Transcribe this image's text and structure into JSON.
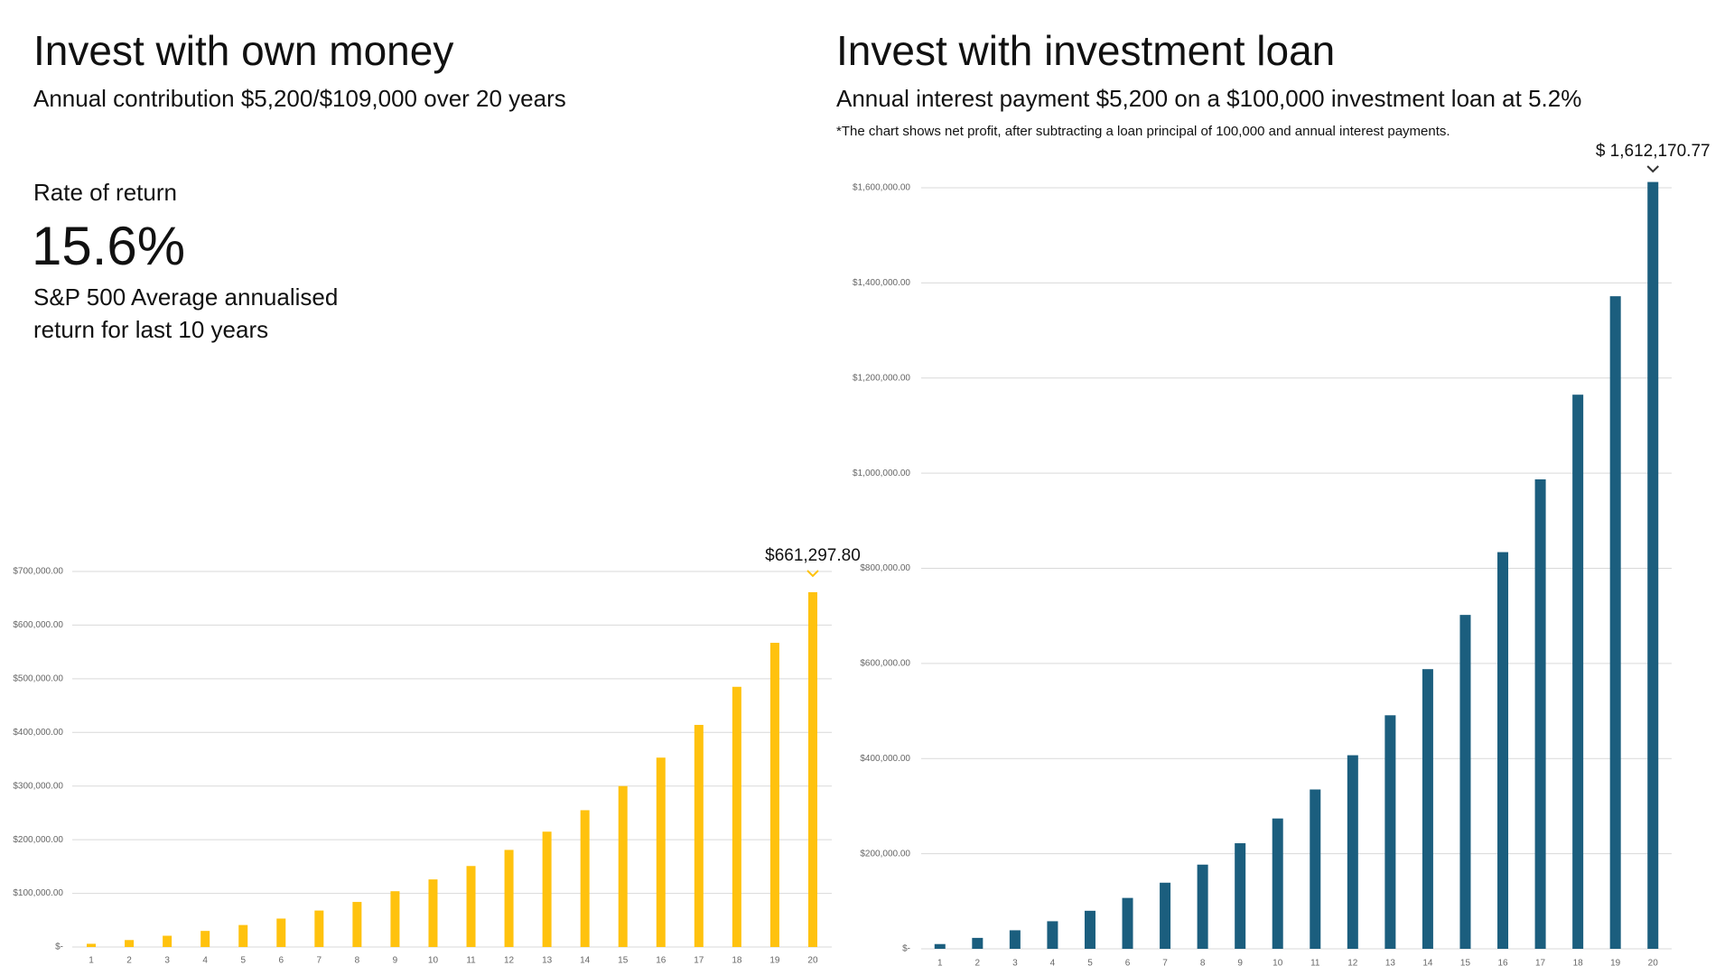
{
  "chart_data": [
    {
      "type": "bar",
      "title": "Invest with own money",
      "subtitle": "Annual contribution $5,200/$109,000 over 20 years",
      "highlight": {
        "label": "Rate of return",
        "value": "15.6%",
        "caption": [
          "S&P 500 Average annualised",
          "return for last 10 years"
        ]
      },
      "annotation": "$661,297.80",
      "categories": [
        "1",
        "2",
        "3",
        "4",
        "5",
        "6",
        "7",
        "8",
        "9",
        "10",
        "11",
        "12",
        "13",
        "14",
        "15",
        "16",
        "17",
        "18",
        "19",
        "20"
      ],
      "values": [
        6000,
        13000,
        21000,
        30000,
        41000,
        53000,
        68000,
        84000,
        104000,
        126000,
        151000,
        181000,
        215000,
        255000,
        300000,
        353000,
        414000,
        485000,
        567000,
        661297.8
      ],
      "color": "#FFC20E",
      "ylim": [
        0,
        700000
      ],
      "yticks": [
        {
          "value": 0,
          "label": "$-"
        },
        {
          "value": 100000,
          "label": "$100,000.00"
        },
        {
          "value": 200000,
          "label": "$200,000.00"
        },
        {
          "value": 300000,
          "label": "$300,000.00"
        },
        {
          "value": 400000,
          "label": "$400,000.00"
        },
        {
          "value": 500000,
          "label": "$500,000.00"
        },
        {
          "value": 600000,
          "label": "$600,000.00"
        },
        {
          "value": 700000,
          "label": "$700,000.00"
        }
      ],
      "grid": true
    },
    {
      "type": "bar",
      "title": "Invest with investment loan",
      "subtitle": "Annual interest payment $5,200 on a $100,000 investment loan at 5.2%",
      "note": "*The chart shows net profit, after subtracting a loan principal of 100,000 and annual interest payments.",
      "annotation": "$ 1,612,170.77",
      "categories": [
        "1",
        "2",
        "3",
        "4",
        "5",
        "6",
        "7",
        "8",
        "9",
        "10",
        "11",
        "12",
        "13",
        "14",
        "15",
        "16",
        "17",
        "18",
        "19",
        "20"
      ],
      "values": [
        10000,
        23000,
        39000,
        58000,
        80000,
        107000,
        139000,
        177000,
        222000,
        274000,
        335000,
        407000,
        491000,
        588000,
        702000,
        834000,
        987000,
        1165000,
        1372000,
        1612170.77
      ],
      "color": "#1B5E7E",
      "ylim": [
        0,
        1600000
      ],
      "yticks": [
        {
          "value": 0,
          "label": "$-"
        },
        {
          "value": 200000,
          "label": "$200,000.00"
        },
        {
          "value": 400000,
          "label": "$400,000.00"
        },
        {
          "value": 600000,
          "label": "$600,000.00"
        },
        {
          "value": 800000,
          "label": "$800,000.00"
        },
        {
          "value": 1000000,
          "label": "$1,000,000.00"
        },
        {
          "value": 1200000,
          "label": "$1,200,000.00"
        },
        {
          "value": 1400000,
          "label": "$1,400,000.00"
        },
        {
          "value": 1600000,
          "label": "$1,600,000.00"
        }
      ],
      "grid": true
    }
  ]
}
